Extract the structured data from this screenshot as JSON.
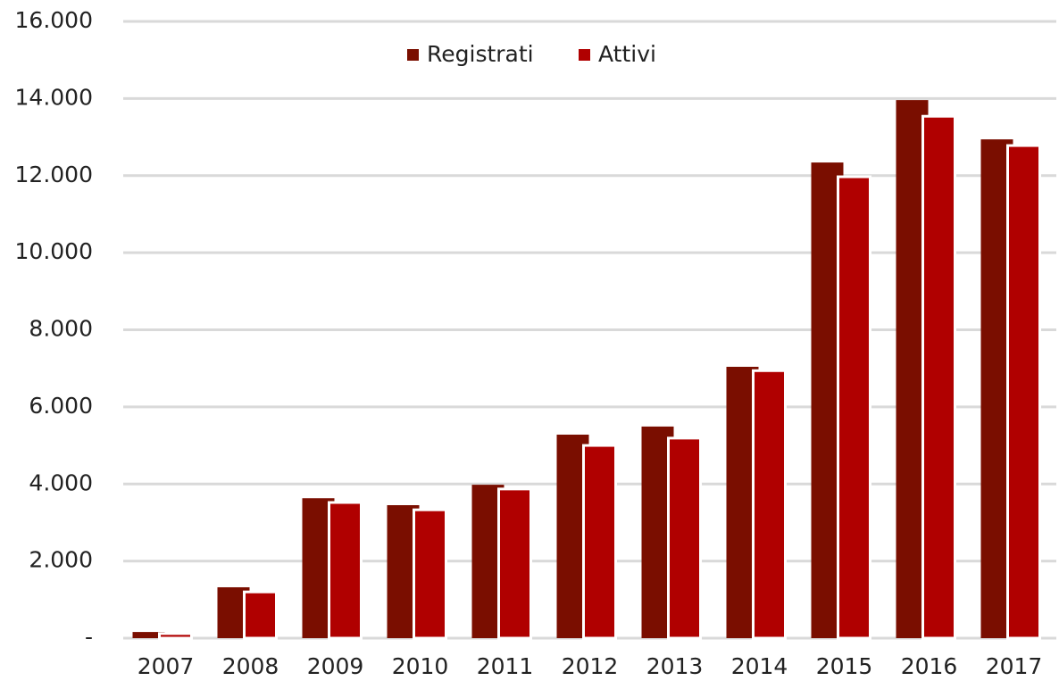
{
  "chart_data": {
    "type": "bar",
    "categories": [
      "2007",
      "2008",
      "2009",
      "2010",
      "2011",
      "2012",
      "2013",
      "2014",
      "2015",
      "2016",
      "2017"
    ],
    "series": [
      {
        "name": "Registrati",
        "color": "#7a0e00",
        "values": [
          160,
          1320,
          3630,
          3450,
          3980,
          5280,
          5490,
          7040,
          12340,
          13960,
          12940
        ]
      },
      {
        "name": "Attivi",
        "color": "#b00000",
        "values": [
          120,
          1200,
          3520,
          3330,
          3870,
          5000,
          5190,
          6940,
          11970,
          13540,
          12780
        ]
      }
    ],
    "ylim": [
      0,
      16000
    ],
    "yticks": [
      {
        "value": 0,
        "label": "-"
      },
      {
        "value": 2000,
        "label": "2.000"
      },
      {
        "value": 4000,
        "label": "4.000"
      },
      {
        "value": 6000,
        "label": "6.000"
      },
      {
        "value": 8000,
        "label": "8.000"
      },
      {
        "value": 10000,
        "label": "10.000"
      },
      {
        "value": 12000,
        "label": "12.000"
      },
      {
        "value": 14000,
        "label": "14.000"
      },
      {
        "value": 16000,
        "label": "16.000"
      }
    ],
    "grid": true,
    "legend": "top"
  }
}
